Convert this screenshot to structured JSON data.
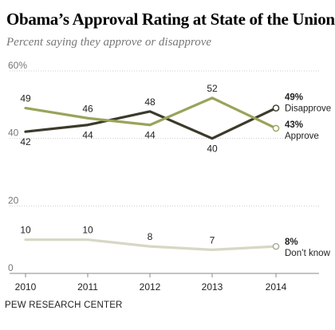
{
  "title": "Obama’s Approval Rating at State of the Union",
  "subtitle": "Percent saying they approve or disapprove",
  "footer": "PEW RESEARCH CENTER",
  "chart_data": {
    "type": "line",
    "x": [
      "2010",
      "2011",
      "2012",
      "2013",
      "2014"
    ],
    "ylim": [
      0,
      60
    ],
    "yticks": [
      {
        "value": 0,
        "label": "0"
      },
      {
        "value": 20,
        "label": "20"
      },
      {
        "value": 40,
        "label": "40"
      },
      {
        "value": 60,
        "label": "60%"
      }
    ],
    "grid": true,
    "series": [
      {
        "key": "disapprove",
        "name": "Disapprove",
        "color": "#3d3a2c",
        "values": [
          42,
          44,
          48,
          40,
          49
        ],
        "labels": [
          "42",
          "44",
          "48",
          "40",
          ""
        ],
        "label_pos": [
          "below",
          "below",
          "above",
          "below",
          "none"
        ],
        "end_value": "49%"
      },
      {
        "key": "approve",
        "name": "Approve",
        "color": "#9aa35a",
        "values": [
          49,
          46,
          44,
          52,
          43
        ],
        "labels": [
          "49",
          "46",
          "44",
          "52",
          ""
        ],
        "label_pos": [
          "above",
          "above",
          "below",
          "above",
          "none"
        ],
        "end_value": "43%"
      },
      {
        "key": "dontknow",
        "name": "Don’t know",
        "color": "#d7d7c4",
        "values": [
          10,
          10,
          8,
          7,
          8
        ],
        "labels": [
          "10",
          "10",
          "8",
          "7",
          ""
        ],
        "label_pos": [
          "above",
          "above",
          "above",
          "above",
          "none"
        ],
        "end_value": "8%"
      }
    ]
  }
}
